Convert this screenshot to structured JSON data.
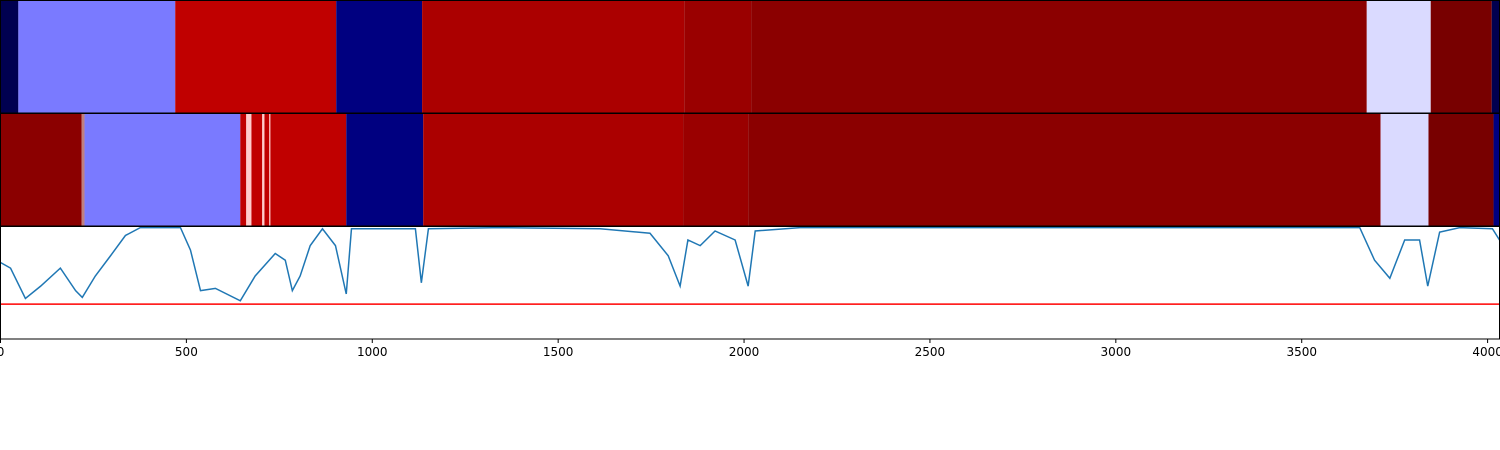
{
  "chart_data": [
    {
      "type": "segments",
      "xlim": [
        0,
        4032
      ],
      "segments": [
        {
          "start": 0,
          "end": 48,
          "color": "#000050"
        },
        {
          "start": 48,
          "end": 470,
          "color": "#7a7aff"
        },
        {
          "start": 470,
          "end": 903,
          "color": "#c00000"
        },
        {
          "start": 903,
          "end": 1134,
          "color": "#000080"
        },
        {
          "start": 1134,
          "end": 1839,
          "color": "#ab0000"
        },
        {
          "start": 1839,
          "end": 2019,
          "color": "#9a0000"
        },
        {
          "start": 2019,
          "end": 3675,
          "color": "#8b0000"
        },
        {
          "start": 3675,
          "end": 3847,
          "color": "#dadaff"
        },
        {
          "start": 3847,
          "end": 4011,
          "color": "#780000"
        },
        {
          "start": 4011,
          "end": 4032,
          "color": "#000050"
        }
      ]
    },
    {
      "type": "segments",
      "xlim": [
        0,
        4032
      ],
      "segments": [
        {
          "start": 0,
          "end": 218,
          "color": "#8b0000"
        },
        {
          "start": 218,
          "end": 226,
          "color": "#c08080"
        },
        {
          "start": 226,
          "end": 645,
          "color": "#7a7aff"
        },
        {
          "start": 645,
          "end": 661,
          "color": "#c00000"
        },
        {
          "start": 661,
          "end": 675,
          "color": "#ffcccc"
        },
        {
          "start": 675,
          "end": 704,
          "color": "#c00000"
        },
        {
          "start": 704,
          "end": 710,
          "color": "#ffcccc"
        },
        {
          "start": 710,
          "end": 723,
          "color": "#c00000"
        },
        {
          "start": 723,
          "end": 726,
          "color": "#ffcccc"
        },
        {
          "start": 726,
          "end": 930,
          "color": "#c00000"
        },
        {
          "start": 930,
          "end": 1137,
          "color": "#000080"
        },
        {
          "start": 1137,
          "end": 1836,
          "color": "#ab0000"
        },
        {
          "start": 1836,
          "end": 2011,
          "color": "#9a0000"
        },
        {
          "start": 2011,
          "end": 3712,
          "color": "#8b0000"
        },
        {
          "start": 3712,
          "end": 3841,
          "color": "#dadaff"
        },
        {
          "start": 3841,
          "end": 4016,
          "color": "#780000"
        },
        {
          "start": 4016,
          "end": 4032,
          "color": "#000080"
        }
      ]
    },
    {
      "type": "line",
      "xlim": [
        0,
        4032
      ],
      "ylim": [
        0,
        1
      ],
      "xticks": [
        0,
        500,
        1000,
        1500,
        2000,
        2500,
        3000,
        3500,
        4000
      ],
      "x": [
        0,
        27,
        67,
        108,
        161,
        202,
        220,
        255,
        296,
        336,
        376,
        484,
        511,
        538,
        578,
        645,
        685,
        739,
        766,
        785,
        806,
        833,
        866,
        901,
        930,
        944,
        1116,
        1132,
        1151,
        1344,
        1613,
        1747,
        1796,
        1828,
        1849,
        1882,
        1922,
        1976,
        2011,
        2030,
        2151,
        3656,
        3696,
        3737,
        3777,
        3817,
        3839,
        3871,
        3925,
        4013,
        4032
      ],
      "series": [
        {
          "color": "#1f77b4",
          "values": [
            0.68,
            0.63,
            0.36,
            0.47,
            0.63,
            0.43,
            0.37,
            0.56,
            0.74,
            0.92,
            0.99,
            0.99,
            0.79,
            0.43,
            0.45,
            0.34,
            0.56,
            0.76,
            0.7,
            0.43,
            0.56,
            0.83,
            0.98,
            0.83,
            0.4,
            0.98,
            0.98,
            0.5,
            0.98,
            0.99,
            0.98,
            0.94,
            0.74,
            0.47,
            0.88,
            0.83,
            0.96,
            0.88,
            0.47,
            0.96,
            0.99,
            0.99,
            0.7,
            0.54,
            0.88,
            0.88,
            0.47,
            0.95,
            0.99,
            0.98,
            0.88
          ]
        }
      ],
      "hlines": [
        {
          "value": 0.31,
          "color": "#ff0000"
        }
      ]
    }
  ]
}
